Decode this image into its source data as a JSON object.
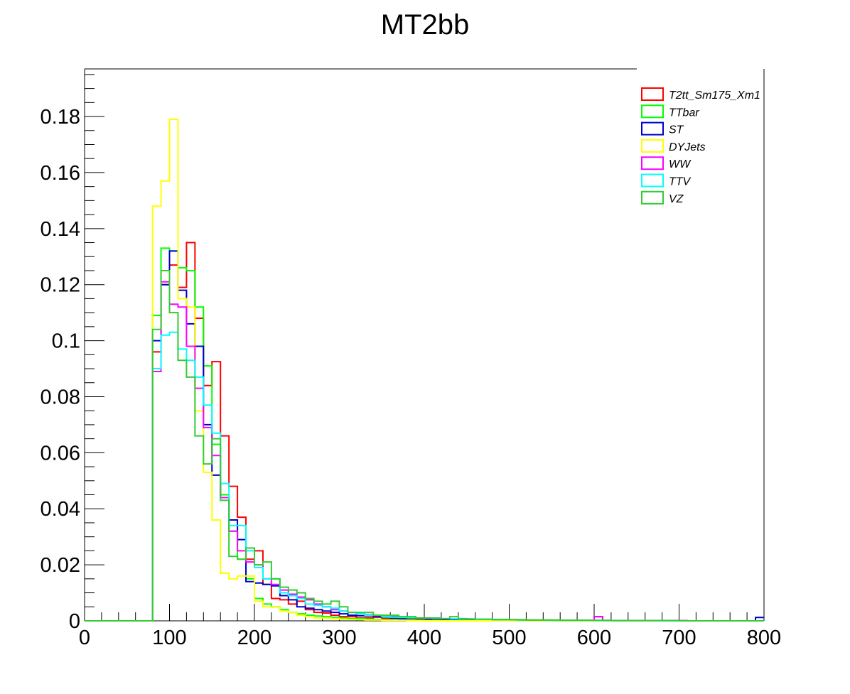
{
  "chart_data": {
    "type": "line",
    "title": "MT2bb",
    "xlabel": "",
    "ylabel": "",
    "xlim": [
      0,
      800
    ],
    "ylim": [
      0,
      0.197
    ],
    "x_ticks": [
      0,
      100,
      200,
      300,
      400,
      500,
      600,
      700,
      800
    ],
    "y_ticks": [
      0,
      0.02,
      0.04,
      0.06,
      0.08,
      0.1,
      0.12,
      0.14,
      0.16,
      0.18
    ],
    "y_tick_labels": [
      "0",
      "0.02",
      "0.04",
      "0.06",
      "0.08",
      "0.1",
      "0.12",
      "0.14",
      "0.16",
      "0.18"
    ],
    "grid": false,
    "legend_position": "top-right",
    "bin_edges": [
      0,
      10,
      20,
      30,
      40,
      50,
      60,
      70,
      80,
      90,
      100,
      110,
      120,
      130,
      140,
      150,
      160,
      170,
      180,
      190,
      200,
      210,
      220,
      230,
      240,
      250,
      260,
      270,
      280,
      290,
      300,
      310,
      320,
      330,
      340,
      350,
      360,
      370,
      380,
      390,
      400,
      410,
      420,
      430,
      440,
      450,
      460,
      470,
      480,
      490,
      500,
      510,
      520,
      530,
      540,
      550,
      560,
      570,
      580,
      590,
      600,
      610,
      620,
      630,
      640,
      650,
      660,
      670,
      680,
      690,
      700,
      710,
      720,
      730,
      740,
      750,
      760,
      770,
      780,
      790,
      800
    ],
    "series": [
      {
        "name": "T2tt_Sm175_Xm1",
        "color": "#ff0000",
        "values": [
          0,
          0,
          0,
          0,
          0,
          0,
          0,
          0,
          0.096,
          0.12,
          0.127,
          0.119,
          0.135,
          0.108,
          0.084,
          0.0925,
          0.066,
          0.048,
          0.037,
          0.022,
          0.025,
          0.013,
          0.008,
          0.0075,
          0.006,
          0.007,
          0.004,
          0.003,
          0.0028,
          0.002,
          0.0015,
          0.0015,
          0.001,
          0.0011,
          0.0013,
          0.0008,
          0.0008,
          0.0007,
          0.0005,
          0.0005,
          0.0004,
          0.0004,
          0.0003,
          0.0003,
          0.0003,
          0.0003,
          0.0002,
          0.0002,
          0.0002,
          0.0001,
          0,
          0,
          0,
          0,
          0,
          0,
          0,
          0,
          0,
          0,
          0,
          0,
          0,
          0,
          0,
          0,
          0,
          0,
          0,
          0,
          0,
          0,
          0,
          0,
          0,
          0,
          0,
          0,
          0,
          0
        ]
      },
      {
        "name": "TTbar",
        "color": "#00ff00",
        "values": [
          0,
          0,
          0,
          0,
          0,
          0,
          0,
          0,
          0.109,
          0.133,
          0.132,
          0.126,
          0.125,
          0.112,
          0.091,
          0.063,
          0.045,
          0.032,
          0.022,
          0.015,
          0.008,
          0.006,
          0.005,
          0.004,
          0.003,
          0.0025,
          0.002,
          0.0017,
          0.0015,
          0.0012,
          0.001,
          0.0008,
          0.0008,
          0.0006,
          0.0005,
          0.0004,
          0.0004,
          0.0003,
          0.0003,
          0.0002,
          0.0002,
          0.0002,
          0.0002,
          0.0001,
          0.0001,
          0.0001,
          0.0001,
          0,
          0,
          0,
          0,
          0,
          0,
          0,
          0,
          0,
          0,
          0,
          0,
          0,
          0,
          0,
          0,
          0,
          0,
          0,
          0,
          0,
          0,
          0,
          0,
          0,
          0,
          0,
          0,
          0,
          0,
          0,
          0,
          0
        ]
      },
      {
        "name": "ST",
        "color": "#0000cc",
        "values": [
          0,
          0,
          0,
          0,
          0,
          0,
          0,
          0,
          0.1,
          0.12,
          0.132,
          0.118,
          0.106,
          0.098,
          0.07,
          0.052,
          0.044,
          0.036,
          0.029,
          0.014,
          0.0135,
          0.013,
          0.0125,
          0.009,
          0.0075,
          0.005,
          0.0045,
          0.004,
          0.0035,
          0.003,
          0.0025,
          0.002,
          0.0018,
          0.0018,
          0.0015,
          0.0014,
          0.001,
          0.0008,
          0.001,
          0.0008,
          0.0006,
          0.0006,
          0.0004,
          0.0005,
          0.0004,
          0.0004,
          0.0004,
          0.0003,
          0.0003,
          0.0003,
          0.0003,
          0.0002,
          0.0002,
          0.0002,
          0.0002,
          0.0002,
          0.0001,
          0.0001,
          0.0001,
          0.0001,
          0.0015,
          0.0001,
          0.0001,
          0.0001,
          0.0001,
          0,
          0,
          0,
          0,
          0,
          0,
          0,
          0,
          0,
          0,
          0,
          0,
          0,
          0,
          0.0012
        ]
      },
      {
        "name": "DYJets",
        "color": "#ffff00",
        "values": [
          0,
          0,
          0,
          0,
          0,
          0,
          0,
          0,
          0.148,
          0.157,
          0.179,
          0.115,
          0.112,
          0.075,
          0.053,
          0.036,
          0.017,
          0.015,
          0.016,
          0.016,
          0.007,
          0.005,
          0.005,
          0.0035,
          0.003,
          0.002,
          0.0015,
          0.001,
          0.001,
          0.0008,
          0.0006,
          0.0005,
          0.0004,
          0.0003,
          0.0003,
          0.0002,
          0.0002,
          0.0002,
          0.0001,
          0.0001,
          0,
          0,
          0,
          0,
          0,
          0,
          0,
          0,
          0,
          0,
          0,
          0,
          0,
          0,
          0,
          0,
          0,
          0,
          0,
          0,
          0,
          0,
          0,
          0,
          0,
          0,
          0,
          0,
          0,
          0,
          0,
          0,
          0,
          0,
          0,
          0,
          0,
          0,
          0,
          0
        ]
      },
      {
        "name": "WW",
        "color": "#ff00ff",
        "values": [
          0,
          0,
          0,
          0,
          0,
          0,
          0,
          0,
          0.089,
          0.121,
          0.113,
          0.112,
          0.098,
          0.083,
          0.069,
          0.059,
          0.044,
          0.032,
          0.025,
          0.021,
          0.02,
          0.015,
          0.013,
          0.011,
          0.0095,
          0.0085,
          0.0075,
          0.006,
          0.005,
          0.004,
          0.0035,
          0.003,
          0.0025,
          0.0022,
          0.002,
          0.0018,
          0.0016,
          0.0014,
          0.0012,
          0.001,
          0.0009,
          0.0008,
          0.0007,
          0.0007,
          0.0006,
          0.0006,
          0.0005,
          0.0005,
          0.0004,
          0.0004,
          0.0004,
          0.0003,
          0.0003,
          0.0003,
          0.0003,
          0.0002,
          0.0002,
          0.0002,
          0.0002,
          0.0002,
          0.0015,
          0.0001,
          0.0001,
          0.0001,
          0.0001,
          0.0001,
          0.0001,
          0.0001,
          0.0001,
          0.0001,
          0.0001,
          0,
          0,
          0,
          0,
          0,
          0,
          0,
          0,
          0
        ]
      },
      {
        "name": "TTV",
        "color": "#00ffff",
        "values": [
          0,
          0,
          0,
          0,
          0,
          0,
          0,
          0,
          0.09,
          0.102,
          0.103,
          0.097,
          0.093,
          0.087,
          0.077,
          0.067,
          0.049,
          0.034,
          0.034,
          0.025,
          0.019,
          0.015,
          0.015,
          0.01,
          0.009,
          0.008,
          0.006,
          0.0055,
          0.005,
          0.0045,
          0.0035,
          0.003,
          0.0025,
          0.002,
          0.002,
          0.0015,
          0.0013,
          0.0012,
          0.0011,
          0.001,
          0.001,
          0.0009,
          0.0008,
          0.0007,
          0.0006,
          0.0006,
          0.0005,
          0.0005,
          0.0004,
          0.0004,
          0.0004,
          0.0003,
          0.0003,
          0.0003,
          0.0002,
          0.0002,
          0.0002,
          0.0002,
          0.0002,
          0.0002,
          0.0001,
          0.0001,
          0.0001,
          0.0001,
          0.0001,
          0.0001,
          0.0001,
          0.0001,
          0,
          0,
          0,
          0,
          0,
          0,
          0,
          0,
          0,
          0,
          0,
          0
        ]
      },
      {
        "name": "VZ",
        "color": "#33cc33",
        "values": [
          0,
          0,
          0,
          0,
          0,
          0,
          0,
          0,
          0.104,
          0.125,
          0.11,
          0.093,
          0.087,
          0.066,
          0.056,
          0.065,
          0.043,
          0.023,
          0.022,
          0.026,
          0.02,
          0.021,
          0.015,
          0.012,
          0.011,
          0.01,
          0.008,
          0.007,
          0.006,
          0.007,
          0.005,
          0.003,
          0.003,
          0.003,
          0.002,
          0.002,
          0.002,
          0.0015,
          0.0015,
          0.001,
          0.001,
          0.001,
          0.0008,
          0.0015,
          0.0008,
          0.0007,
          0.0006,
          0.0006,
          0.0005,
          0.0005,
          0.0004,
          0.0004,
          0.0003,
          0.0003,
          0.0003,
          0.0003,
          0.0002,
          0.0002,
          0.0002,
          0.0002,
          0.0002,
          0.0002,
          0.0001,
          0.0001,
          0.0001,
          0.0001,
          0.0001,
          0.0001,
          0.0001,
          0.0001,
          0,
          0,
          0,
          0,
          0,
          0,
          0,
          0,
          0,
          0
        ]
      }
    ]
  }
}
